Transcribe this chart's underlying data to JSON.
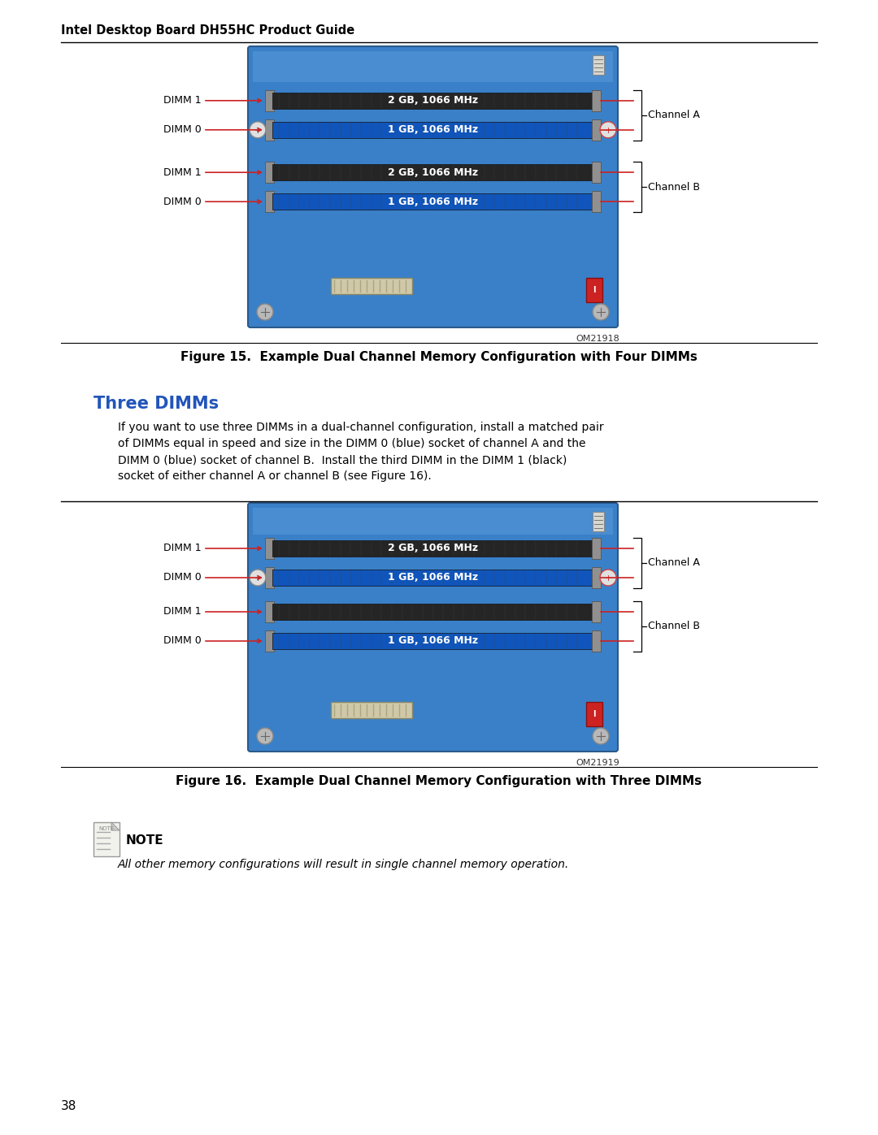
{
  "page_title": "Intel Desktop Board DH55HC Product Guide",
  "page_number": "38",
  "fig15_caption": "Figure 15.  Example Dual Channel Memory Configuration with Four DIMMs",
  "fig16_caption": "Figure 16.  Example Dual Channel Memory Configuration with Three DIMMs",
  "fig15_id": "OM21918",
  "fig16_id": "OM21919",
  "section_title": "Three DIMMs",
  "body_lines": [
    "If you want to use three DIMMs in a dual-channel configuration, install a matched pair",
    "of DIMMs equal in speed and size in the DIMM 0 (blue) socket of channel A and the",
    "DIMM 0 (blue) socket of channel B.  Install the third DIMM in the DIMM 1 (black)",
    "socket of either channel A or channel B (see Figure 16)."
  ],
  "note_title": "NOTE",
  "note_text": "All other memory configurations will result in single channel memory operation.",
  "channel_a_label": "Channel A",
  "channel_b_label": "Channel B",
  "fig15_rows": [
    {
      "label": "DIMM 1",
      "text": "2 GB, 1066 MHz",
      "type": "black",
      "has_circle": false
    },
    {
      "label": "DIMM 0",
      "text": "1 GB, 1066 MHz",
      "type": "blue",
      "has_circle": true
    },
    {
      "label": "DIMM 1",
      "text": "2 GB, 1066 MHz",
      "type": "black",
      "has_circle": false
    },
    {
      "label": "DIMM 0",
      "text": "1 GB, 1066 MHz",
      "type": "blue",
      "has_circle": false
    }
  ],
  "fig16_rows": [
    {
      "label": "DIMM 1",
      "text": "2 GB, 1066 MHz",
      "type": "black",
      "has_circle": false
    },
    {
      "label": "DIMM 0",
      "text": "1 GB, 1066 MHz",
      "type": "blue",
      "has_circle": true
    },
    {
      "label": "DIMM 1",
      "text": "",
      "type": "black_empty",
      "has_circle": false
    },
    {
      "label": "DIMM 0",
      "text": "1 GB, 1066 MHz",
      "type": "blue",
      "has_circle": false
    }
  ],
  "bg_color": "#ffffff",
  "section_color": "#2255bb",
  "board_blue": "#3a80c8",
  "board_blue_light": "#5a9ad8",
  "slot_black": "#252525",
  "slot_blue": "#1055bb",
  "slot_text": "#ffffff",
  "arrow_red": "#cc2222",
  "connector_gray": "#888888",
  "atx_color": "#d0c8a8",
  "red_comp": "#cc2222",
  "screw_color": "#b8b8b8"
}
